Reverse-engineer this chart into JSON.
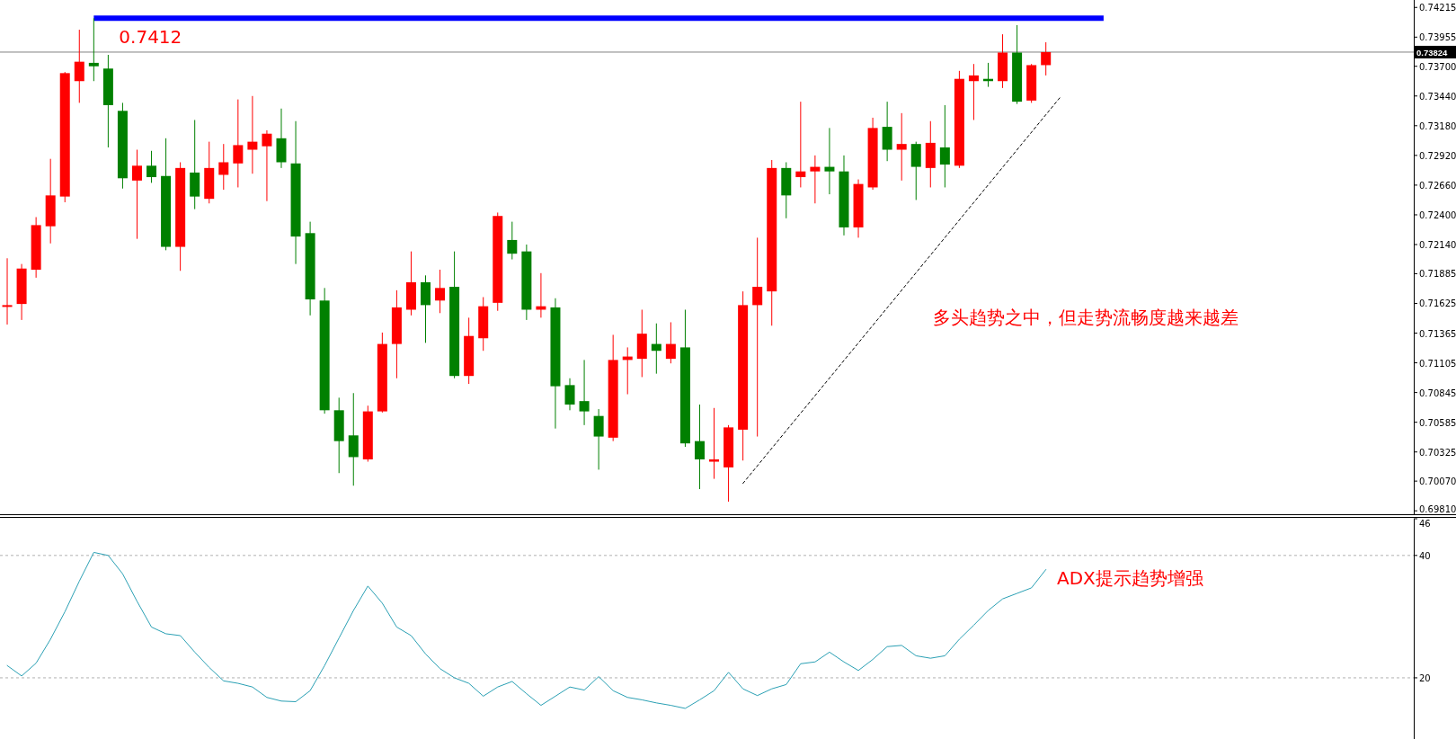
{
  "chart_data": [
    {
      "type": "candlestick",
      "tick_labels": "y",
      "grid": false,
      "categories": [
        null,
        null,
        null,
        null,
        null,
        null,
        null,
        null,
        null,
        null,
        null,
        null,
        null,
        null,
        null,
        null,
        null,
        null,
        null,
        null,
        null,
        null,
        null,
        null,
        null,
        null,
        null,
        null,
        null,
        null,
        null,
        null,
        null,
        null,
        null,
        null,
        null,
        null,
        null,
        null,
        null,
        null,
        null,
        null,
        null,
        null,
        null,
        null,
        null,
        null,
        null,
        null,
        null,
        null,
        null,
        null,
        null,
        null,
        null,
        null,
        null,
        null,
        null,
        null,
        null,
        null,
        null,
        null,
        null,
        null,
        null,
        null,
        null,
        null,
        null,
        null,
        null,
        null,
        null,
        null,
        null,
        null,
        null,
        null,
        null,
        null,
        null,
        null,
        null,
        null,
        null,
        null,
        null,
        null,
        null,
        null,
        null,
        null
      ],
      "ohlc": [
        [
          0.716,
          0.7202,
          0.7144,
          0.7161
        ],
        [
          0.7162,
          0.7197,
          0.7148,
          0.7193
        ],
        [
          0.7192,
          0.7238,
          0.7185,
          0.7231
        ],
        [
          0.723,
          0.7289,
          0.7215,
          0.7257
        ],
        [
          0.7256,
          0.7365,
          0.7251,
          0.7364
        ],
        [
          0.7357,
          0.7402,
          0.7338,
          0.7374
        ],
        [
          0.7373,
          0.7412,
          0.7357,
          0.737
        ],
        [
          0.7368,
          0.738,
          0.7299,
          0.7336
        ],
        [
          0.7331,
          0.7338,
          0.7263,
          0.7272
        ],
        [
          0.727,
          0.7297,
          0.7219,
          0.7283
        ],
        [
          0.7283,
          0.7296,
          0.7268,
          0.7273
        ],
        [
          0.7274,
          0.7307,
          0.7209,
          0.7212
        ],
        [
          0.7212,
          0.7286,
          0.7191,
          0.7281
        ],
        [
          0.7277,
          0.7323,
          0.7245,
          0.7256
        ],
        [
          0.7254,
          0.7304,
          0.725,
          0.7281
        ],
        [
          0.7275,
          0.7302,
          0.7262,
          0.7286
        ],
        [
          0.7285,
          0.7341,
          0.7264,
          0.7301
        ],
        [
          0.7297,
          0.7344,
          0.7276,
          0.7304
        ],
        [
          0.73,
          0.7314,
          0.7252,
          0.7311
        ],
        [
          0.7307,
          0.7333,
          0.7281,
          0.7286
        ],
        [
          0.7285,
          0.7322,
          0.7197,
          0.7221
        ],
        [
          0.7224,
          0.7234,
          0.7152,
          0.7166
        ],
        [
          0.7165,
          0.7176,
          0.7066,
          0.7069
        ],
        [
          0.7069,
          0.708,
          0.7014,
          0.7042
        ],
        [
          0.7047,
          0.7084,
          0.7003,
          0.7028
        ],
        [
          0.7026,
          0.7073,
          0.7024,
          0.7068
        ],
        [
          0.7068,
          0.7137,
          0.7067,
          0.7127
        ],
        [
          0.7127,
          0.7174,
          0.7097,
          0.7159
        ],
        [
          0.7157,
          0.7208,
          0.7152,
          0.7181
        ],
        [
          0.7181,
          0.7187,
          0.7128,
          0.7161
        ],
        [
          0.7165,
          0.7192,
          0.7154,
          0.7176
        ],
        [
          0.7177,
          0.7208,
          0.7097,
          0.7099
        ],
        [
          0.7099,
          0.715,
          0.7092,
          0.7134
        ],
        [
          0.7132,
          0.7168,
          0.7121,
          0.716
        ],
        [
          0.7163,
          0.7242,
          0.7156,
          0.7239
        ],
        [
          0.7218,
          0.7234,
          0.7201,
          0.7206
        ],
        [
          0.7208,
          0.7214,
          0.7148,
          0.7157
        ],
        [
          0.7157,
          0.7189,
          0.715,
          0.716
        ],
        [
          0.7159,
          0.7167,
          0.7053,
          0.709
        ],
        [
          0.7091,
          0.7097,
          0.7069,
          0.7074
        ],
        [
          0.7077,
          0.7113,
          0.7056,
          0.7068
        ],
        [
          0.7064,
          0.707,
          0.7017,
          0.7046
        ],
        [
          0.7045,
          0.7135,
          0.7042,
          0.7113
        ],
        [
          0.7113,
          0.7124,
          0.7083,
          0.7116
        ],
        [
          0.7114,
          0.7157,
          0.7098,
          0.7136
        ],
        [
          0.7127,
          0.7145,
          0.7101,
          0.7121
        ],
        [
          0.7114,
          0.7146,
          0.711,
          0.7127
        ],
        [
          0.7124,
          0.7157,
          0.7037,
          0.704
        ],
        [
          0.7042,
          0.7074,
          0.7,
          0.7026
        ],
        [
          0.7024,
          0.7071,
          0.7009,
          0.7026
        ],
        [
          0.7019,
          0.7056,
          0.6989,
          0.7054
        ],
        [
          0.7052,
          0.7173,
          0.7025,
          0.7161
        ],
        [
          0.7161,
          0.722,
          0.7046,
          0.7177
        ],
        [
          0.7173,
          0.7288,
          0.7143,
          0.7281
        ],
        [
          0.7281,
          0.7286,
          0.7237,
          0.7257
        ],
        [
          0.7273,
          0.7339,
          0.7264,
          0.7278
        ],
        [
          0.7278,
          0.7292,
          0.725,
          0.7282
        ],
        [
          0.7282,
          0.7316,
          0.7258,
          0.7278
        ],
        [
          0.7278,
          0.7292,
          0.7222,
          0.7229
        ],
        [
          0.7229,
          0.7271,
          0.722,
          0.7267
        ],
        [
          0.7264,
          0.7325,
          0.7262,
          0.7316
        ],
        [
          0.7317,
          0.7339,
          0.7287,
          0.7297
        ],
        [
          0.7297,
          0.7329,
          0.727,
          0.7302
        ],
        [
          0.7302,
          0.7304,
          0.7253,
          0.7282
        ],
        [
          0.7281,
          0.7322,
          0.7264,
          0.7303
        ],
        [
          0.7299,
          0.7336,
          0.7264,
          0.7284
        ],
        [
          0.7283,
          0.7366,
          0.7281,
          0.7359
        ],
        [
          0.7357,
          0.7372,
          0.7323,
          0.7362
        ],
        [
          0.7359,
          0.7373,
          0.7352,
          0.7357
        ],
        [
          0.7357,
          0.7398,
          0.7351,
          0.7382
        ],
        [
          0.7382,
          0.7406,
          0.7337,
          0.7339
        ],
        [
          0.734,
          0.7372,
          0.7338,
          0.7371
        ],
        [
          0.7371,
          0.7391,
          0.7362,
          0.73824
        ],
        null,
        null,
        null,
        null,
        null,
        null,
        null,
        null,
        null,
        null,
        null,
        null,
        null,
        null,
        null,
        null,
        null,
        null,
        null,
        null,
        null,
        null,
        null,
        null,
        null
      ],
      "colors": [
        "#ff0000",
        "#ff0000",
        "#ff0000",
        "#ff0000",
        "#ff0000",
        "#ff0000",
        "#008000",
        "#008000",
        "#008000",
        "#ff0000",
        "#008000",
        "#008000",
        "#ff0000",
        "#008000",
        "#ff0000",
        "#ff0000",
        "#ff0000",
        "#ff0000",
        "#ff0000",
        "#008000",
        "#008000",
        "#008000",
        "#008000",
        "#008000",
        "#008000",
        "#ff0000",
        "#ff0000",
        "#ff0000",
        "#ff0000",
        "#008000",
        "#ff0000",
        "#008000",
        "#ff0000",
        "#ff0000",
        "#ff0000",
        "#008000",
        "#008000",
        "#ff0000",
        "#008000",
        "#008000",
        "#008000",
        "#008000",
        "#ff0000",
        "#ff0000",
        "#ff0000",
        "#008000",
        "#ff0000",
        "#008000",
        "#008000",
        "#ff0000",
        "#ff0000",
        "#ff0000",
        "#ff0000",
        "#ff0000",
        "#008000",
        "#ff0000",
        "#ff0000",
        "#008000",
        "#008000",
        "#ff0000",
        "#ff0000",
        "#008000",
        "#ff0000",
        "#008000",
        "#ff0000",
        "#008000",
        "#ff0000",
        "#ff0000",
        "#008000",
        "#ff0000",
        "#008000",
        "#ff0000",
        "#ff0000",
        null,
        null,
        null,
        null,
        null,
        null,
        null,
        null,
        null,
        null,
        null,
        null,
        null,
        null,
        null,
        null,
        null,
        null,
        null,
        null,
        null,
        null,
        null,
        null,
        null
      ],
      "series": [
        {
          "type": "line",
          "color": "#000000",
          "line_style": "dashed",
          "values": [
            null,
            null,
            null,
            null,
            null,
            null,
            null,
            null,
            null,
            null,
            null,
            null,
            null,
            null,
            null,
            null,
            null,
            null,
            null,
            null,
            null,
            null,
            null,
            null,
            null,
            null,
            null,
            null,
            null,
            null,
            null,
            null,
            null,
            null,
            null,
            null,
            null,
            null,
            null,
            null,
            null,
            null,
            null,
            null,
            null,
            null,
            null,
            null,
            null,
            null,
            null,
            0.7005,
            null,
            null,
            null,
            null,
            null,
            null,
            null,
            null,
            null,
            null,
            null,
            null,
            null,
            null,
            null,
            null,
            null,
            null,
            null,
            null,
            null,
            0.7343,
            null,
            null,
            null,
            null,
            null,
            null,
            null,
            null,
            null,
            null,
            null,
            null,
            null,
            null,
            null,
            null,
            null,
            null,
            null,
            null,
            null,
            null,
            null,
            null
          ]
        }
      ],
      "ylim": [
        0.6978,
        0.7428
      ],
      "yticks": [
        {
          "value": 0.74215,
          "label": "0.74215"
        },
        {
          "value": 0.73955,
          "label": "0.73955"
        },
        {
          "value": 0.737,
          "label": "0.73700"
        },
        {
          "value": 0.7344,
          "label": "0.73440"
        },
        {
          "value": 0.7318,
          "label": "0.73180"
        },
        {
          "value": 0.7292,
          "label": "0.72920"
        },
        {
          "value": 0.7266,
          "label": "0.72660"
        },
        {
          "value": 0.724,
          "label": "0.72400"
        },
        {
          "value": 0.7214,
          "label": "0.72140"
        },
        {
          "value": 0.71885,
          "label": "0.71885"
        },
        {
          "value": 0.71625,
          "label": "0.71625"
        },
        {
          "value": 0.71365,
          "label": "0.71365"
        },
        {
          "value": 0.71105,
          "label": "0.71105"
        },
        {
          "value": 0.70845,
          "label": "0.70845"
        },
        {
          "value": 0.70585,
          "label": "0.70585"
        },
        {
          "value": 0.70325,
          "label": "0.70325"
        },
        {
          "value": 0.7007,
          "label": "0.70070"
        },
        {
          "value": 0.6981,
          "label": "0.69810"
        }
      ],
      "ref_lines": [
        {
          "axis": "y",
          "value": 0.7412,
          "label": "0.7412",
          "color": "#0000ff"
        },
        {
          "axis": "y",
          "value": 0.73824,
          "label": "0.73824",
          "color": "#808080"
        }
      ],
      "annotations": [
        "多头趋势之中，但走势流畅度越来越差"
      ]
    },
    {
      "type": "line",
      "tick_labels": "y",
      "grid": "y",
      "categories": [
        null,
        null,
        null,
        null,
        null,
        null,
        null,
        null,
        null,
        null,
        null,
        null,
        null,
        null,
        null,
        null,
        null,
        null,
        null,
        null,
        null,
        null,
        null,
        null,
        null,
        null,
        null,
        null,
        null,
        null,
        null,
        null,
        null,
        null,
        null,
        null,
        null,
        null,
        null,
        null,
        null,
        null,
        null,
        null,
        null,
        null,
        null,
        null,
        null,
        null,
        null,
        null,
        null,
        null,
        null,
        null,
        null,
        null,
        null,
        null,
        null,
        null,
        null,
        null,
        null,
        null,
        null,
        null,
        null,
        null,
        null,
        null,
        null,
        null,
        null,
        null,
        null,
        null,
        null,
        null,
        null,
        null,
        null,
        null,
        null,
        null,
        null,
        null,
        null,
        null,
        null,
        null,
        null,
        null,
        null,
        null,
        null,
        null
      ],
      "series": [
        {
          "color": "#2aa0b4",
          "values": [
            22.0,
            20.3,
            22.4,
            26.3,
            30.8,
            35.8,
            40.5,
            40.0,
            37.0,
            32.5,
            28.3,
            27.2,
            26.9,
            24.2,
            21.7,
            19.5,
            19.1,
            18.5,
            16.8,
            16.2,
            16.1,
            17.9,
            22.0,
            26.5,
            31.0,
            35.0,
            32.2,
            28.3,
            26.9,
            23.9,
            21.5,
            20.0,
            19.1,
            17.0,
            18.5,
            19.4,
            17.4,
            15.5,
            17.0,
            18.5,
            18.0,
            20.2,
            17.9,
            16.8,
            16.4,
            15.9,
            15.5,
            15.0,
            16.4,
            17.9,
            20.9,
            18.2,
            17.1,
            18.2,
            18.9,
            22.3,
            22.6,
            24.2,
            22.6,
            21.2,
            23.0,
            25.1,
            25.3,
            23.6,
            23.2,
            23.6,
            26.3,
            28.6,
            31.0,
            32.9,
            33.8,
            34.7,
            37.7,
            null,
            null,
            null,
            null,
            null,
            null,
            null,
            null,
            null,
            null,
            null,
            null,
            null,
            null,
            null,
            null,
            null,
            null,
            null,
            null,
            null,
            null,
            null,
            null,
            null
          ]
        }
      ],
      "ylim": [
        10,
        46
      ],
      "yticks": [
        20,
        40,
        46
      ],
      "annotations": [
        "ADX提示趋势增强"
      ]
    }
  ]
}
